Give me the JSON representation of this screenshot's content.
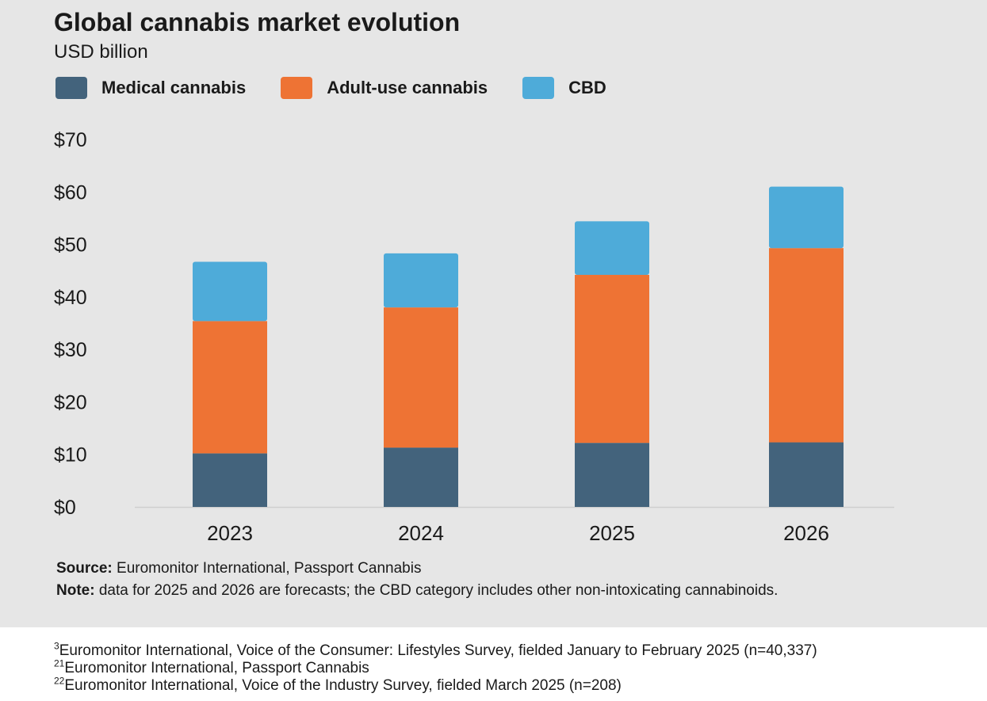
{
  "chart_data": {
    "type": "bar",
    "stacked": true,
    "title": "Global cannabis market evolution",
    "subtitle": "USD billion",
    "categories": [
      "2023",
      "2024",
      "2025",
      "2026"
    ],
    "series": [
      {
        "name": "Medical cannabis",
        "color": "#43637c",
        "values": [
          10.2,
          11.3,
          12.2,
          12.3
        ]
      },
      {
        "name": "Adult-use cannabis",
        "color": "#ee7334",
        "values": [
          25.2,
          26.7,
          32.0,
          37.0
        ]
      },
      {
        "name": "CBD",
        "color": "#4eabd9",
        "values": [
          11.3,
          10.3,
          10.2,
          11.7
        ]
      }
    ],
    "ylim": [
      0,
      70
    ],
    "yticks": [
      0,
      10,
      20,
      30,
      40,
      50,
      60,
      70
    ],
    "ytick_labels": [
      "$0",
      "$10",
      "$20",
      "$30",
      "$40",
      "$50",
      "$60",
      "$70"
    ],
    "grid": false,
    "legend": "top-left"
  },
  "source": {
    "label": "Source:",
    "text": " Euromonitor International, Passport Cannabis"
  },
  "note": {
    "label": "Note:",
    "text": " data for 2025 and 2026 are forecasts; the CBD category includes other non-intoxicating cannabinoids."
  },
  "footnotes": [
    {
      "num": "3",
      "text": "Euromonitor International, Voice of the Consumer: Lifestyles Survey, fielded January to February 2025 (n=40,337)"
    },
    {
      "num": "21",
      "text": "Euromonitor International, Passport Cannabis"
    },
    {
      "num": "22",
      "text": "Euromonitor International, Voice of the Industry Survey, fielded March 2025 (n=208)"
    }
  ]
}
